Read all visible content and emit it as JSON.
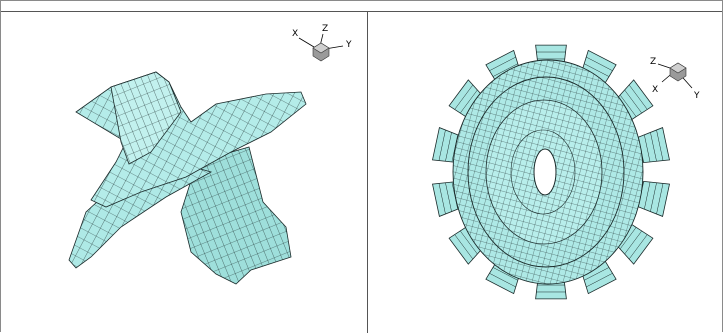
{
  "panels": [
    {
      "id": "left",
      "description_name": "blade-passage-mesh",
      "axes_triad": {
        "labels": [
          "X",
          "Z",
          "Y"
        ]
      }
    },
    {
      "id": "right",
      "description_name": "full-rotor-mesh",
      "axes_triad": {
        "labels": [
          "Z",
          "X",
          "Y"
        ]
      }
    }
  ],
  "colors": {
    "surface_fill": "#aee9e6",
    "surface_shade": "#8fd6d2",
    "mesh_line": "#1a2a2a",
    "frame_line": "#555555"
  }
}
